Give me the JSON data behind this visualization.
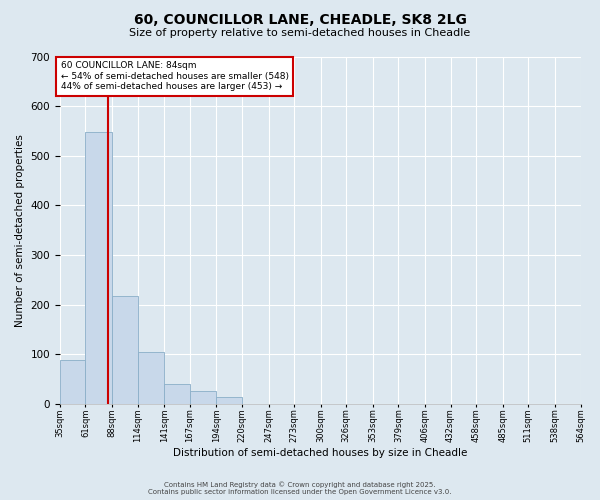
{
  "title_line1": "60, COUNCILLOR LANE, CHEADLE, SK8 2LG",
  "title_line2": "Size of property relative to semi-detached houses in Cheadle",
  "xlabel": "Distribution of semi-detached houses by size in Cheadle",
  "ylabel": "Number of semi-detached properties",
  "annotation_line1": "60 COUNCILLOR LANE: 84sqm",
  "annotation_line2": "← 54% of semi-detached houses are smaller (548)",
  "annotation_line3": "44% of semi-detached houses are larger (453) →",
  "footer_line1": "Contains HM Land Registry data © Crown copyright and database right 2025.",
  "footer_line2": "Contains public sector information licensed under the Open Government Licence v3.0.",
  "bin_edges": [
    35,
    61,
    88,
    114,
    141,
    167,
    194,
    220,
    247,
    273,
    300,
    326,
    353,
    379,
    406,
    432,
    458,
    485,
    511,
    538,
    564
  ],
  "bin_heights": [
    88,
    548,
    218,
    104,
    40,
    27,
    14,
    0,
    0,
    0,
    0,
    0,
    0,
    0,
    0,
    0,
    0,
    0,
    0,
    0
  ],
  "property_size": 84,
  "bar_color": "#c8d8ea",
  "bar_edge_color": "#8aaec8",
  "line_color": "#cc0000",
  "background_color": "#dde8f0",
  "plot_background": "#dde8f0",
  "grid_color": "#ffffff",
  "annotation_box_color": "#ffffff",
  "annotation_box_edge": "#cc0000",
  "ylim": [
    0,
    700
  ],
  "yticks": [
    0,
    100,
    200,
    300,
    400,
    500,
    600,
    700
  ]
}
